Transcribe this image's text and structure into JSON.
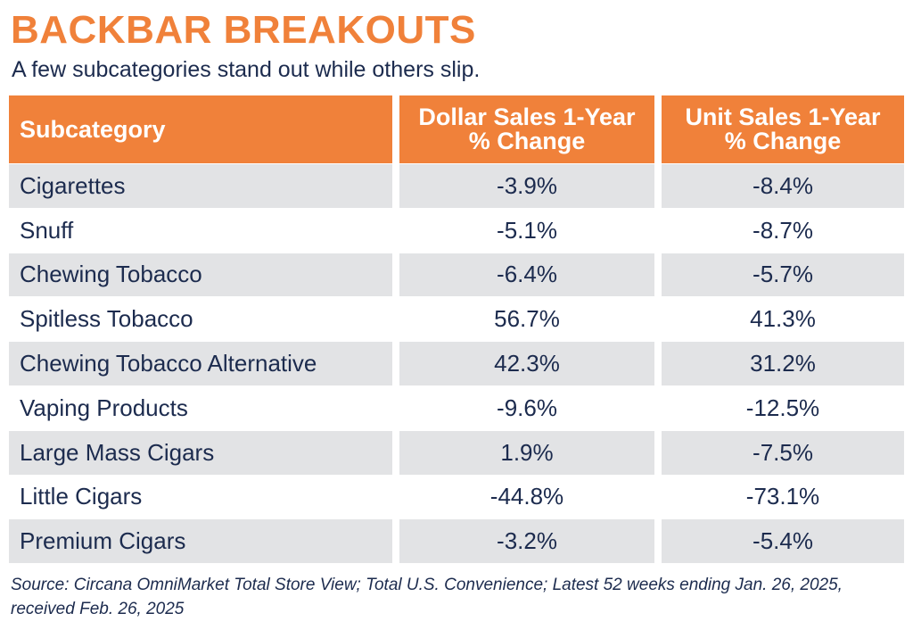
{
  "title": "BACKBAR BREAKOUTS",
  "subtitle": "A few subcategories stand out while others slip.",
  "chart_data": {
    "type": "table",
    "columns": [
      "Subcategory",
      "Dollar Sales 1-Year % Change",
      "Unit Sales 1-Year % Change"
    ],
    "header_lines": {
      "col1": [
        "Subcategory"
      ],
      "col2": [
        "Dollar Sales 1-Year",
        "% Change"
      ],
      "col3": [
        "Unit Sales 1-Year",
        "% Change"
      ]
    },
    "rows": [
      {
        "subcategory": "Cigarettes",
        "dollar": "-3.9%",
        "unit": "-8.4%"
      },
      {
        "subcategory": "Snuff",
        "dollar": "-5.1%",
        "unit": "-8.7%"
      },
      {
        "subcategory": "Chewing Tobacco",
        "dollar": "-6.4%",
        "unit": "-5.7%"
      },
      {
        "subcategory": "Spitless Tobacco",
        "dollar": "56.7%",
        "unit": "41.3%"
      },
      {
        "subcategory": "Chewing Tobacco Alternative",
        "dollar": "42.3%",
        "unit": "31.2%"
      },
      {
        "subcategory": "Vaping Products",
        "dollar": "-9.6%",
        "unit": "-12.5%"
      },
      {
        "subcategory": "Large Mass Cigars",
        "dollar": "1.9%",
        "unit": "-7.5%"
      },
      {
        "subcategory": "Little Cigars",
        "dollar": "-44.8%",
        "unit": "-73.1%"
      },
      {
        "subcategory": "Premium Cigars",
        "dollar": "-3.2%",
        "unit": "-5.4%"
      }
    ]
  },
  "source_lines": [
    "Source: Circana OmniMarket Total Store View; Total U.S. Convenience; Latest 52 weeks ending Jan. 26, 2025,",
    "received Feb. 26, 2025"
  ],
  "colors": {
    "accent": "#F0813A",
    "text": "#1C2B4E",
    "stripe": "#E2E3E5"
  }
}
